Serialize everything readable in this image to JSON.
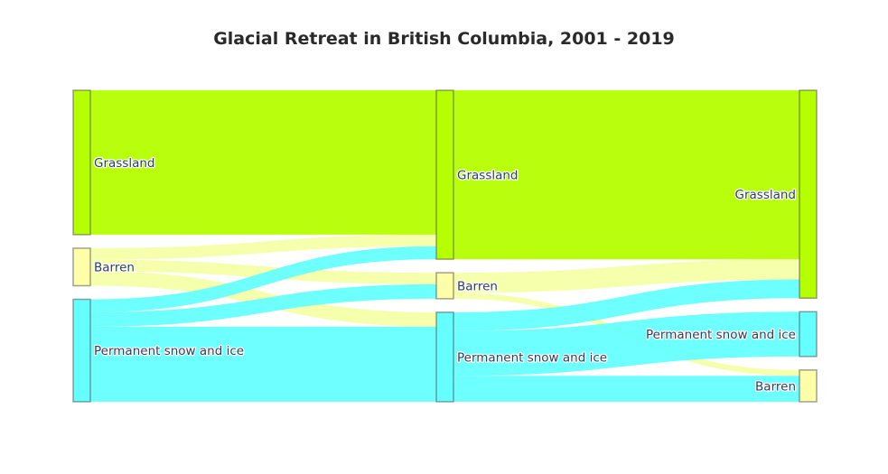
{
  "chart_data": {
    "type": "sankey",
    "title": "Glacial Retreat in British Columbia, 2001 - 2019",
    "colors": {
      "Grassland": "#b5ff00",
      "Barren": "#ffffaa",
      "Permanent snow and ice": "#66ffff",
      "link_Grassland": "#b5ff00",
      "link_Barren": "#f6ffa8",
      "link_Permanent snow and ice": "#66ffff"
    },
    "columns": [
      [
        "Grassland",
        "Barren",
        "Permanent snow and ice"
      ],
      [
        "Grassland",
        "Barren",
        "Permanent snow and ice"
      ],
      [
        "Grassland",
        "Permanent snow and ice",
        "Barren"
      ]
    ],
    "links": [
      {
        "from_col": 0,
        "source": "Grassland",
        "target": "Grassland",
        "value": 1000
      },
      {
        "from_col": 0,
        "source": "Barren",
        "target": "Grassland",
        "value": 80
      },
      {
        "from_col": 0,
        "source": "Barren",
        "target": "Barren",
        "value": 80
      },
      {
        "from_col": 0,
        "source": "Barren",
        "target": "Permanent snow and ice",
        "value": 100
      },
      {
        "from_col": 0,
        "source": "Permanent snow and ice",
        "target": "Grassland",
        "value": 90
      },
      {
        "from_col": 0,
        "source": "Permanent snow and ice",
        "target": "Barren",
        "value": 100
      },
      {
        "from_col": 0,
        "source": "Permanent snow and ice",
        "target": "Permanent snow and ice",
        "value": 520
      },
      {
        "from_col": 1,
        "source": "Grassland",
        "target": "Grassland",
        "value": 1170
      },
      {
        "from_col": 1,
        "source": "Barren",
        "target": "Grassland",
        "value": 140
      },
      {
        "from_col": 1,
        "source": "Barren",
        "target": "Barren",
        "value": 40
      },
      {
        "from_col": 1,
        "source": "Permanent snow and ice",
        "target": "Grassland",
        "value": 130
      },
      {
        "from_col": 1,
        "source": "Permanent snow and ice",
        "target": "Permanent snow and ice",
        "value": 310
      },
      {
        "from_col": 1,
        "source": "Permanent snow and ice",
        "target": "Barren",
        "value": 180
      }
    ]
  }
}
